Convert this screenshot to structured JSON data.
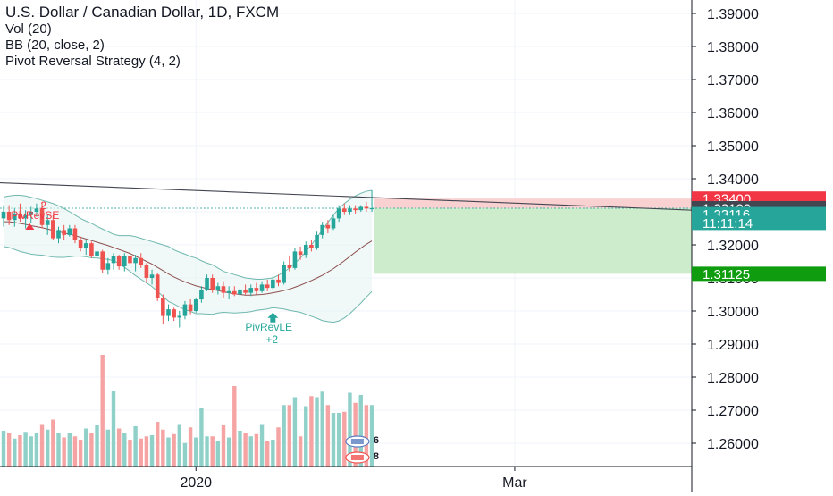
{
  "legend": {
    "title": "U.S. Dollar / Canadian Dollar, 1D, FXCM",
    "indicators": [
      "Vol (20)",
      "BB (20, close, 2)",
      "Pivot Reversal Strategy (4, 2)"
    ]
  },
  "colors": {
    "up": "#26a69a",
    "down": "#ef5350",
    "up_volume": "#8fd0c8",
    "down_volume": "#f5a3a3",
    "bb_band": "#6fb8ae",
    "bb_basis": "#8d4f4f",
    "stop_zone": "#f9cccc",
    "target_zone": "#c9ebc9",
    "bid_tag": "#f23645",
    "last_tag": "#434651",
    "ask_tag": "#26a69a",
    "target_tag": "#0f9d0f"
  },
  "chart_data": {
    "type": "candlestick",
    "symbol": "U.S. Dollar / Canadian Dollar",
    "interval": "1D",
    "source": "FXCM",
    "y_axis": {
      "min": 1.25,
      "max": 1.395,
      "ticks": [
        "1.39000",
        "1.38000",
        "1.37000",
        "1.36000",
        "1.35000",
        "1.34000",
        "1.33000",
        "1.32000",
        "1.31000",
        "1.30000",
        "1.29000",
        "1.28000",
        "1.27000",
        "1.26000"
      ],
      "tick_values": [
        1.39,
        1.38,
        1.37,
        1.36,
        1.35,
        1.34,
        1.33,
        1.32,
        1.31,
        1.3,
        1.29,
        1.28,
        1.27,
        1.26
      ]
    },
    "x_axis": {
      "labels": [
        {
          "text": "2020",
          "index": 35
        },
        {
          "text": "Mar",
          "index": 93
        }
      ],
      "bars_visible": 160
    },
    "candles": [
      [
        1.328,
        1.332,
        1.3255,
        1.33
      ],
      [
        1.33,
        1.332,
        1.326,
        1.3275
      ],
      [
        1.3275,
        1.331,
        1.3255,
        1.3295
      ],
      [
        1.3295,
        1.3325,
        1.327,
        1.328
      ],
      [
        1.328,
        1.3305,
        1.325,
        1.329
      ],
      [
        1.329,
        1.3315,
        1.3265,
        1.33
      ],
      [
        1.33,
        1.3325,
        1.3285,
        1.331
      ],
      [
        1.331,
        1.333,
        1.325,
        1.326
      ],
      [
        1.326,
        1.329,
        1.323,
        1.3275
      ],
      [
        1.3275,
        1.329,
        1.3215,
        1.322
      ],
      [
        1.322,
        1.3255,
        1.3205,
        1.3245
      ],
      [
        1.3245,
        1.326,
        1.3215,
        1.323
      ],
      [
        1.323,
        1.326,
        1.3225,
        1.325
      ],
      [
        1.325,
        1.326,
        1.3205,
        1.3215
      ],
      [
        1.3215,
        1.3225,
        1.318,
        1.319
      ],
      [
        1.319,
        1.3215,
        1.317,
        1.3205
      ],
      [
        1.3205,
        1.321,
        1.316,
        1.3165
      ],
      [
        1.3165,
        1.319,
        1.314,
        1.318
      ],
      [
        1.318,
        1.3185,
        1.3115,
        1.3125
      ],
      [
        1.3125,
        1.316,
        1.311,
        1.3145
      ],
      [
        1.3145,
        1.3175,
        1.3125,
        1.3165
      ],
      [
        1.3165,
        1.317,
        1.3125,
        1.3135
      ],
      [
        1.3135,
        1.3175,
        1.312,
        1.3165
      ],
      [
        1.3165,
        1.3185,
        1.3135,
        1.3145
      ],
      [
        1.3145,
        1.317,
        1.312,
        1.316
      ],
      [
        1.316,
        1.3175,
        1.313,
        1.314
      ],
      [
        1.314,
        1.3145,
        1.3085,
        1.31
      ],
      [
        1.31,
        1.3125,
        1.308,
        1.311
      ],
      [
        1.311,
        1.3115,
        1.303,
        1.304
      ],
      [
        1.304,
        1.305,
        1.296,
        1.2985
      ],
      [
        1.2985,
        1.302,
        1.297,
        1.3005
      ],
      [
        1.3005,
        1.301,
        1.297,
        1.298
      ],
      [
        1.298,
        1.3,
        1.295,
        1.2985
      ],
      [
        1.2985,
        1.303,
        1.2975,
        1.302
      ],
      [
        1.302,
        1.3035,
        1.299,
        1.3
      ],
      [
        1.3,
        1.304,
        1.2995,
        1.3035
      ],
      [
        1.3035,
        1.3075,
        1.3025,
        1.3065
      ],
      [
        1.3065,
        1.311,
        1.306,
        1.31
      ],
      [
        1.31,
        1.311,
        1.3055,
        1.3065
      ],
      [
        1.3065,
        1.3085,
        1.305,
        1.3075
      ],
      [
        1.3075,
        1.309,
        1.304,
        1.3055
      ],
      [
        1.3055,
        1.3075,
        1.3035,
        1.306
      ],
      [
        1.306,
        1.3075,
        1.3045,
        1.305
      ],
      [
        1.305,
        1.307,
        1.304,
        1.3065
      ],
      [
        1.3065,
        1.308,
        1.305,
        1.3055
      ],
      [
        1.3055,
        1.308,
        1.3045,
        1.307
      ],
      [
        1.307,
        1.3085,
        1.305,
        1.306
      ],
      [
        1.306,
        1.309,
        1.3055,
        1.308
      ],
      [
        1.308,
        1.3095,
        1.306,
        1.307
      ],
      [
        1.307,
        1.3105,
        1.3065,
        1.3095
      ],
      [
        1.3095,
        1.311,
        1.3075,
        1.3085
      ],
      [
        1.3085,
        1.315,
        1.308,
        1.314
      ],
      [
        1.314,
        1.3165,
        1.312,
        1.313
      ],
      [
        1.313,
        1.319,
        1.3125,
        1.318
      ],
      [
        1.318,
        1.3195,
        1.3155,
        1.317
      ],
      [
        1.317,
        1.321,
        1.316,
        1.32
      ],
      [
        1.32,
        1.3215,
        1.318,
        1.319
      ],
      [
        1.319,
        1.324,
        1.3185,
        1.323
      ],
      [
        1.323,
        1.327,
        1.322,
        1.326
      ],
      [
        1.326,
        1.3275,
        1.3235,
        1.325
      ],
      [
        1.325,
        1.329,
        1.3245,
        1.328
      ],
      [
        1.328,
        1.332,
        1.327,
        1.331
      ],
      [
        1.331,
        1.3325,
        1.329,
        1.33
      ],
      [
        1.33,
        1.332,
        1.329,
        1.331
      ],
      [
        1.331,
        1.332,
        1.3295,
        1.3305
      ],
      [
        1.3305,
        1.332,
        1.33,
        1.3315
      ],
      [
        1.3315,
        1.333,
        1.33,
        1.331
      ],
      [
        1.331,
        1.3365,
        1.33,
        1.3311
      ]
    ],
    "volume": {
      "values": [
        0.32,
        0.3,
        0.25,
        0.28,
        0.31,
        0.27,
        0.3,
        0.38,
        0.33,
        0.42,
        0.3,
        0.26,
        0.3,
        0.27,
        0.24,
        0.34,
        0.3,
        0.37,
        1.0,
        0.33,
        0.68,
        0.34,
        0.3,
        0.24,
        0.36,
        0.25,
        0.27,
        0.28,
        0.4,
        0.33,
        0.26,
        0.29,
        0.38,
        0.21,
        0.35,
        0.26,
        0.52,
        0.27,
        0.27,
        0.23,
        0.37,
        0.26,
        0.72,
        0.32,
        0.3,
        0.27,
        0.29,
        0.38,
        0.23,
        0.24,
        0.35,
        0.55,
        0.55,
        0.62,
        0.27,
        0.54,
        0.63,
        0.62,
        0.67,
        0.55,
        0.48,
        0.48,
        0.49,
        0.66,
        0.57,
        0.64,
        0.55,
        0.55
      ],
      "max_label": "",
      "note": ""
    },
    "bollinger_bands": {
      "length": 20,
      "upper": [
        1.3345,
        1.3348,
        1.335,
        1.335,
        1.3348,
        1.3344,
        1.334,
        1.3335,
        1.333,
        1.3325,
        1.3318,
        1.331,
        1.33,
        1.329,
        1.328,
        1.3272,
        1.3265,
        1.3256,
        1.3248,
        1.324,
        1.3232,
        1.3228,
        1.3228,
        1.3228,
        1.3225,
        1.322,
        1.3215,
        1.321,
        1.3205,
        1.32,
        1.3195,
        1.3185,
        1.3178,
        1.3172,
        1.3165,
        1.316,
        1.3152,
        1.3145,
        1.314,
        1.313,
        1.312,
        1.3115,
        1.311,
        1.3105,
        1.31,
        1.3098,
        1.3096,
        1.3096,
        1.3098,
        1.31,
        1.3108,
        1.3118,
        1.313,
        1.3145,
        1.316,
        1.318,
        1.32,
        1.3222,
        1.3245,
        1.3268,
        1.329,
        1.331,
        1.3325,
        1.3338,
        1.3348,
        1.3356,
        1.3362,
        1.3365
      ],
      "basis": [
        1.327,
        1.327,
        1.3268,
        1.3265,
        1.3262,
        1.3258,
        1.3255,
        1.3252,
        1.3248,
        1.3244,
        1.324,
        1.3236,
        1.3232,
        1.3228,
        1.3223,
        1.3218,
        1.3213,
        1.3208,
        1.3203,
        1.3198,
        1.3192,
        1.3186,
        1.318,
        1.3174,
        1.3166,
        1.3158,
        1.315,
        1.3142,
        1.3132,
        1.3122,
        1.3112,
        1.3103,
        1.3095,
        1.3088,
        1.3082,
        1.3076,
        1.3072,
        1.3068,
        1.3065,
        1.3062,
        1.3058,
        1.3055,
        1.3052,
        1.305,
        1.3048,
        1.3048,
        1.3049,
        1.305,
        1.3052,
        1.3055,
        1.3058,
        1.3062,
        1.3066,
        1.3072,
        1.3078,
        1.3085,
        1.3092,
        1.31,
        1.3108,
        1.3118,
        1.3128,
        1.314,
        1.3152,
        1.3165,
        1.3178,
        1.319,
        1.3202,
        1.3212
      ],
      "lower": [
        1.3195,
        1.3192,
        1.3186,
        1.318,
        1.3176,
        1.3172,
        1.317,
        1.3169,
        1.3166,
        1.3163,
        1.3162,
        1.3162,
        1.3164,
        1.3166,
        1.3166,
        1.3164,
        1.3161,
        1.316,
        1.3158,
        1.3156,
        1.3152,
        1.3144,
        1.3132,
        1.312,
        1.3107,
        1.3096,
        1.3085,
        1.3074,
        1.3059,
        1.3044,
        1.3029,
        1.3021,
        1.3012,
        1.3004,
        1.2999,
        1.2992,
        1.2992,
        1.2991,
        1.299,
        1.2994,
        1.2996,
        1.2995,
        1.2994,
        1.2995,
        1.2996,
        1.2998,
        1.3002,
        1.3004,
        1.3006,
        1.301,
        1.3008,
        1.3006,
        1.3002,
        1.2999,
        1.2996,
        1.299,
        1.2984,
        1.2978,
        1.2971,
        1.2968,
        1.2966,
        1.297,
        1.2979,
        1.2992,
        1.3008,
        1.3024,
        1.3042,
        1.3059
      ]
    },
    "trendline": {
      "from": {
        "index": -1,
        "price": 1.3388
      },
      "to": {
        "index": 136,
        "price": 1.3298
      }
    },
    "position": {
      "start_index": 67,
      "end_index": 132,
      "entry": 1.33109,
      "stop": 1.334,
      "target": 1.31125
    },
    "signals": [
      {
        "label": "PivRevSE",
        "value": "2",
        "index": 9,
        "price": 1.33,
        "dir": "short"
      },
      {
        "label": "PivRevLE",
        "value": "+2",
        "index": 49,
        "price": 1.306,
        "dir": "long"
      }
    ],
    "event_flags": [
      {
        "count": "6",
        "index": 66,
        "color": "#5a7ec2"
      },
      {
        "count": "8",
        "index": 66,
        "color": "#ef5350"
      }
    ],
    "price_tags": [
      {
        "text": "1.33400",
        "price": 1.334,
        "color": "#f23645"
      },
      {
        "text": "1.33109",
        "price": 1.33109,
        "color": "#434651"
      },
      {
        "text": "1.33116",
        "price": 1.3293,
        "color": "#26a69a"
      },
      {
        "text": "11:11:14",
        "price": 1.32665,
        "color": "#26a69a"
      },
      {
        "text": "1.31125",
        "price": 1.31125,
        "color": "#0f9d0f"
      }
    ]
  }
}
